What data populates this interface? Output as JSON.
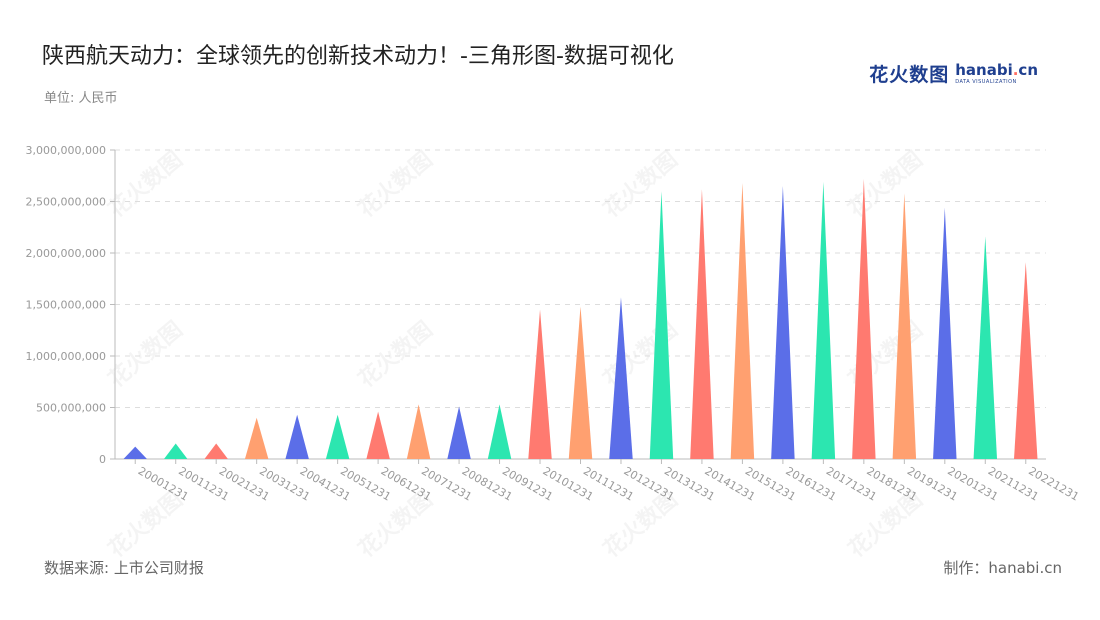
{
  "header": {
    "title": "陕西航天动力：全球领先的创新技术动力！-三角形图-数据可视化",
    "unit": "单位: 人民币"
  },
  "logo": {
    "cn": "花火数图",
    "en_prefix": "hanabi",
    "en_dot": ".",
    "en_suffix": "cn",
    "en_sub": "DATA VISUALIZATION"
  },
  "footer": {
    "source": "数据来源: 上市公司财报",
    "credit": "制作：hanabi.cn"
  },
  "palette": [
    "#5b6ee8",
    "#2ce6b0",
    "#ff7a70",
    "#ffa070"
  ],
  "chart_data": {
    "type": "bar",
    "mark": "triangle",
    "title": "陕西航天动力：全球领先的创新技术动力！-三角形图-数据可视化",
    "ylabel": "单位: 人民币",
    "ylim": [
      0,
      3000000000
    ],
    "yticks": [
      0,
      500000000,
      1000000000,
      1500000000,
      2000000000,
      2500000000,
      3000000000
    ],
    "ytick_labels": [
      "0",
      "500,000,000",
      "1,000,000,000",
      "1,500,000,000",
      "2,000,000,000",
      "2,500,000,000",
      "3,000,000,000"
    ],
    "grid": true,
    "categories": [
      "20001231",
      "20011231",
      "20021231",
      "20031231",
      "20041231",
      "20051231",
      "20061231",
      "20071231",
      "20081231",
      "20091231",
      "20101231",
      "20111231",
      "20121231",
      "20131231",
      "20141231",
      "20151231",
      "20161231",
      "20171231",
      "20181231",
      "20191231",
      "20201231",
      "20211231",
      "20221231"
    ],
    "values": [
      120000000,
      150000000,
      150000000,
      400000000,
      430000000,
      430000000,
      460000000,
      530000000,
      510000000,
      530000000,
      1450000000,
      1480000000,
      1570000000,
      2600000000,
      2620000000,
      2680000000,
      2650000000,
      2690000000,
      2720000000,
      2580000000,
      2440000000,
      2160000000,
      1910000000
    ],
    "colors": [
      "#5b6ee8",
      "#2ce6b0",
      "#ff7a70",
      "#ffa070",
      "#5b6ee8",
      "#2ce6b0",
      "#ff7a70",
      "#ffa070",
      "#5b6ee8",
      "#2ce6b0",
      "#ff7a70",
      "#ffa070",
      "#5b6ee8",
      "#2ce6b0",
      "#ff7a70",
      "#ffa070",
      "#5b6ee8",
      "#2ce6b0",
      "#ff7a70",
      "#ffa070",
      "#5b6ee8",
      "#2ce6b0",
      "#ff7a70"
    ]
  }
}
